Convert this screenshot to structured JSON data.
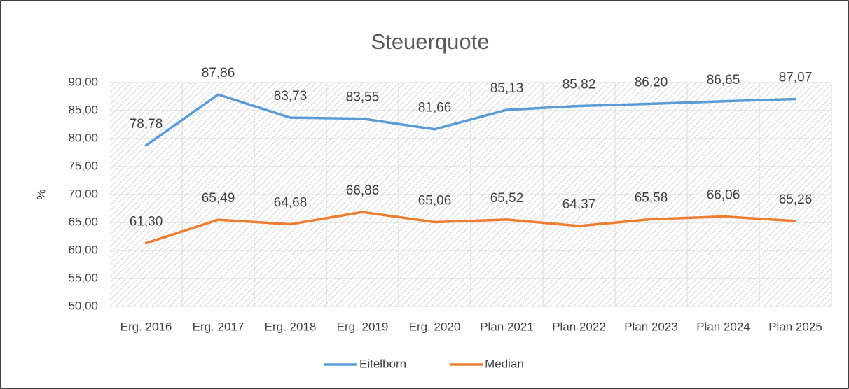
{
  "chart_data": {
    "type": "line",
    "title": "Steuerquote",
    "y_label": "%",
    "categories": [
      "Erg. 2016",
      "Erg. 2017",
      "Erg. 2018",
      "Erg. 2019",
      "Erg. 2020",
      "Plan 2021",
      "Plan 2022",
      "Plan 2023",
      "Plan 2024",
      "Plan 2025"
    ],
    "series": [
      {
        "name": "Eitelborn",
        "color": "#5b9bd5",
        "values": [
          78.78,
          87.86,
          83.73,
          83.55,
          81.66,
          85.13,
          85.82,
          86.2,
          86.65,
          87.07
        ],
        "value_labels": [
          "78,78",
          "87,86",
          "83,73",
          "83,55",
          "81,66",
          "85,13",
          "85,82",
          "86,20",
          "86,65",
          "87,07"
        ]
      },
      {
        "name": "Median",
        "color": "#ed7d31",
        "values": [
          61.3,
          65.49,
          64.68,
          66.86,
          65.06,
          65.52,
          64.37,
          65.58,
          66.06,
          65.26
        ],
        "value_labels": [
          "61,30",
          "65,49",
          "64,68",
          "66,86",
          "65,06",
          "65,52",
          "64,37",
          "65,58",
          "66,06",
          "65,26"
        ]
      }
    ],
    "ylim": [
      50,
      90
    ],
    "yticks": [
      {
        "value": 50,
        "label": "50,00"
      },
      {
        "value": 55,
        "label": "55,00"
      },
      {
        "value": 60,
        "label": "60,00"
      },
      {
        "value": 65,
        "label": "65,00"
      },
      {
        "value": 70,
        "label": "70,00"
      },
      {
        "value": 75,
        "label": "75,00"
      },
      {
        "value": 80,
        "label": "80,00"
      },
      {
        "value": 85,
        "label": "85,00"
      },
      {
        "value": 90,
        "label": "90,00"
      }
    ],
    "grid": true,
    "legend": "bottom"
  }
}
